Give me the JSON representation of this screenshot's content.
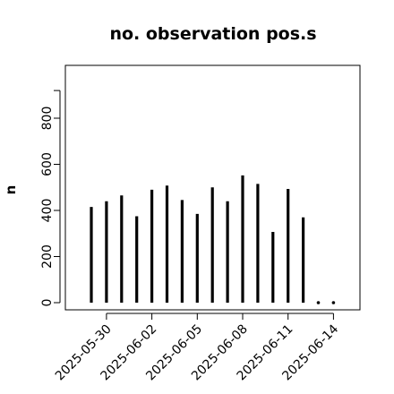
{
  "chart_data": {
    "type": "bar",
    "title": "no. observation pos.s",
    "ylabel": "n",
    "xlabel": "",
    "ylim": [
      0,
      920
    ],
    "yticks": [
      0,
      200,
      400,
      600,
      800
    ],
    "categories": [
      "2025-05-29",
      "2025-05-30",
      "2025-05-31",
      "2025-06-01",
      "2025-06-02",
      "2025-06-03",
      "2025-06-04",
      "2025-06-05",
      "2025-06-06",
      "2025-06-07",
      "2025-06-08",
      "2025-06-09",
      "2025-06-10",
      "2025-06-11",
      "2025-06-12",
      "2025-06-13",
      "2025-06-14"
    ],
    "values": [
      415,
      440,
      465,
      375,
      490,
      508,
      445,
      385,
      500,
      440,
      552,
      515,
      307,
      493,
      370,
      0,
      0
    ],
    "xtick_labels": [
      {
        "label": "2025-05-30",
        "date": "2025-05-30",
        "color": "#000000"
      },
      {
        "label": "2025-06-02",
        "date": "2025-06-02",
        "color": "#000000"
      },
      {
        "label": "2025-06-05",
        "date": "2025-06-05",
        "color": "#228B22"
      },
      {
        "label": "2025-06-08",
        "date": "2025-06-08",
        "color": "#000000"
      },
      {
        "label": "2025-06-11",
        "date": "2025-06-11",
        "color": "#000000"
      },
      {
        "label": "2025-06-14",
        "date": "2025-06-14",
        "color": "#000000"
      }
    ],
    "grid": false,
    "bar_color": "#000000"
  }
}
